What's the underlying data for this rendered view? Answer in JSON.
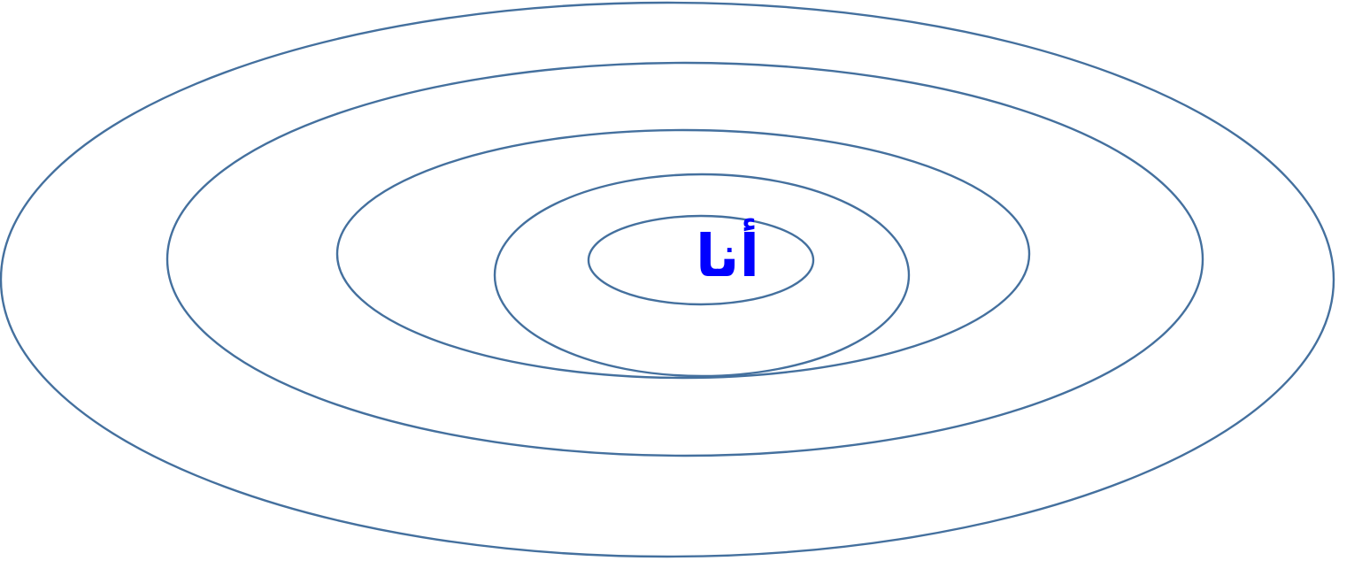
{
  "diagram": {
    "type": "concentric-ellipses",
    "ring_count": 5,
    "center_label": "أنا",
    "colors": {
      "ring_stroke": "#44709e",
      "label": "#0000ff",
      "background": "#ffffff"
    }
  }
}
